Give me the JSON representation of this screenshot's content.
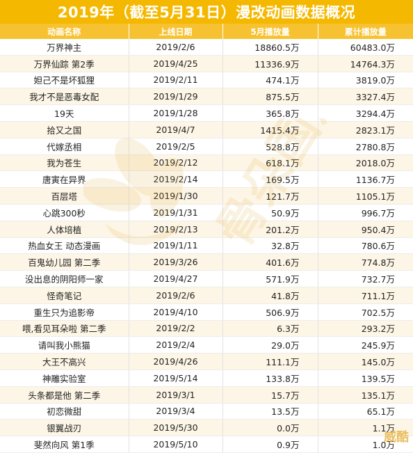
{
  "title": "2019年（截至5月31日）漫改动画数据概况",
  "columns": [
    "动画名称",
    "上线日期",
    "5月播放量",
    "累计播放量"
  ],
  "rows": [
    [
      "万界神主",
      "2019/2/6",
      "18860.5万",
      "60483.0万"
    ],
    [
      "万界仙踪 第2季",
      "2019/4/25",
      "11336.9万",
      "14764.3万"
    ],
    [
      "妲己不是坏狐狸",
      "2019/2/11",
      "474.1万",
      "3819.0万"
    ],
    [
      "我才不是恶毒女配",
      "2019/1/29",
      "875.5万",
      "3327.4万"
    ],
    [
      "19天",
      "2019/1/28",
      "365.8万",
      "3294.4万"
    ],
    [
      "拾又之国",
      "2019/4/7",
      "1415.4万",
      "2823.1万"
    ],
    [
      "代嫁丞相",
      "2019/2/5",
      "528.8万",
      "2780.8万"
    ],
    [
      "我为苍生",
      "2019/2/12",
      "618.1万",
      "2018.0万"
    ],
    [
      "唐寅在异界",
      "2019/2/14",
      "169.5万",
      "1136.7万"
    ],
    [
      "百层塔",
      "2019/1/30",
      "121.7万",
      "1105.1万"
    ],
    [
      "心跳300秒",
      "2019/1/31",
      "50.9万",
      "996.7万"
    ],
    [
      "人体培植",
      "2019/2/13",
      "201.2万",
      "950.4万"
    ],
    [
      "热血女王 动态漫画",
      "2019/1/11",
      "32.8万",
      "780.6万"
    ],
    [
      "百鬼幼儿园 第二季",
      "2019/3/26",
      "401.6万",
      "774.8万"
    ],
    [
      "没出息的阴阳师一家",
      "2019/4/27",
      "571.9万",
      "732.7万"
    ],
    [
      "怪奇笔记",
      "2019/2/6",
      "41.8万",
      "711.1万"
    ],
    [
      "重生只为追影帝",
      "2019/4/10",
      "506.9万",
      "702.5万"
    ],
    [
      "喂,看见耳朵啦 第二季",
      "2019/2/2",
      "6.3万",
      "293.2万"
    ],
    [
      "请叫我小熊猫",
      "2019/2/4",
      "29.0万",
      "245.9万"
    ],
    [
      "大王不高兴",
      "2019/4/26",
      "111.1万",
      "145.0万"
    ],
    [
      "神雕实验室",
      "2019/5/14",
      "133.8万",
      "139.5万"
    ],
    [
      "头条都是他 第二季",
      "2019/3/1",
      "15.7万",
      "135.1万"
    ],
    [
      "初恋微甜",
      "2019/3/4",
      "13.5万",
      "65.1万"
    ],
    [
      "银翼战刃",
      "2019/5/30",
      "0.0万",
      "1.1万"
    ],
    [
      "斐然向风 第1季",
      "2019/5/10",
      "0.9万",
      "1.0万"
    ]
  ],
  "watermark_text": "骨朵国漫",
  "corner_stamp": "威酷",
  "colors": {
    "title_bg": "#f5b800",
    "header_bg": "#f7c232",
    "alt_row": "#fdf6e6"
  }
}
